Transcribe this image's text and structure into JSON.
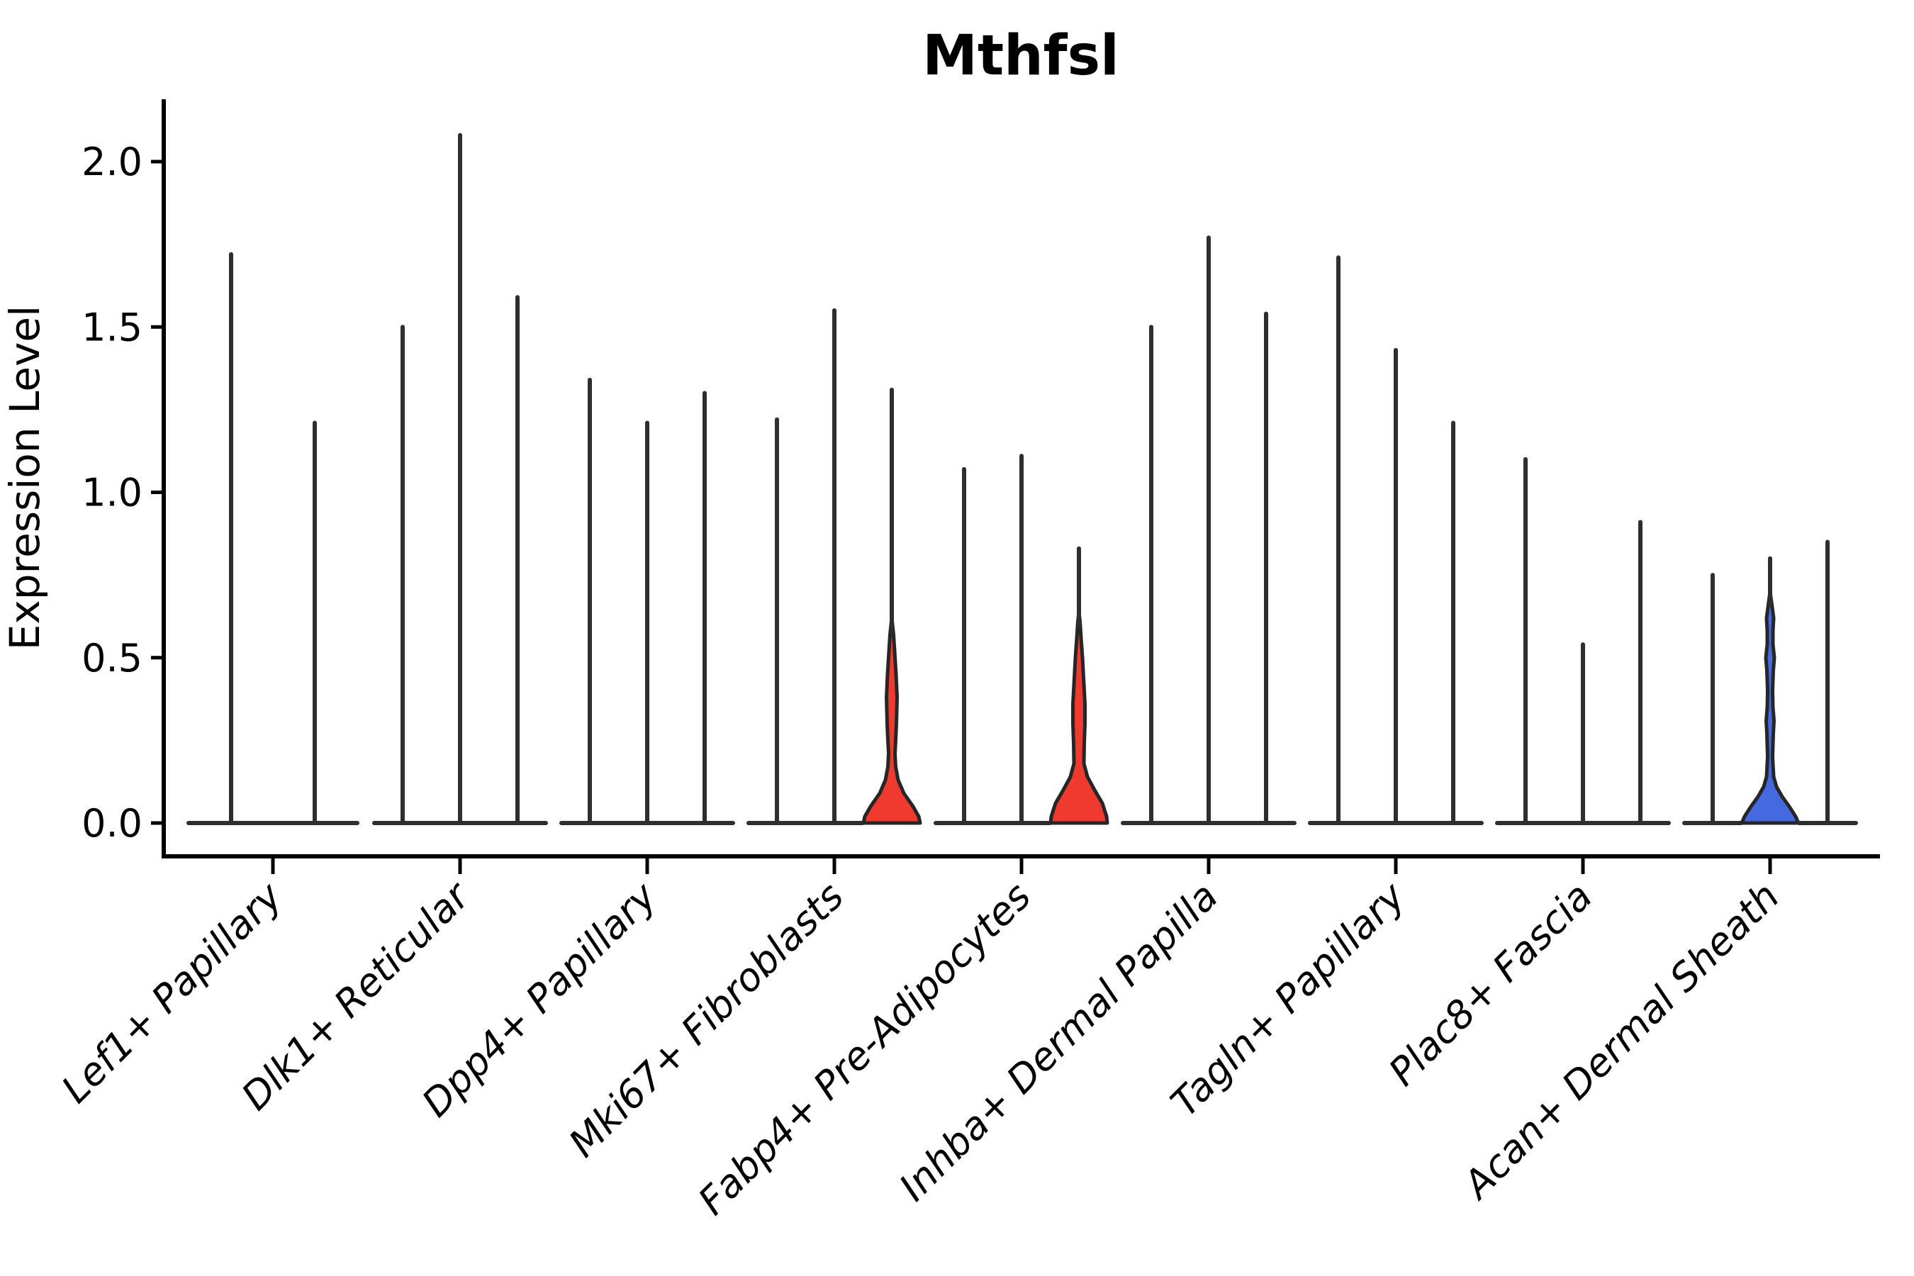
{
  "title": "Mthfsl",
  "ylabel": "Expression Level",
  "chart_data": {
    "type": "violin",
    "title": "Mthfsl",
    "xlabel": "",
    "ylabel": "Expression Level",
    "ylim": [
      -0.11,
      2.19
    ],
    "yticks": [
      0.0,
      0.5,
      1.0,
      1.5,
      2.0
    ],
    "ytick_labels": [
      "0.0",
      "0.5",
      "1.0",
      "1.5",
      "2.0"
    ],
    "grid": false,
    "legend": "none",
    "categories": [
      "Lef1+ Papillary",
      "Dlk1+ Reticular",
      "Dpp4+ Papillary",
      "Mki67+ Fibroblasts",
      "Fabp4+ Pre-Adipocytes",
      "Inhba+ Dermal Papilla",
      "Tagln+ Papillary",
      "Plac8+ Fascia",
      "Acan+ Dermal Sheath"
    ],
    "note": "Each category holds 2-3 thin violins; most collapse to a spike at 0 with a flat base. Filled violins mark non-zero expression density.",
    "groups": [
      {
        "label": "Lef1+ Papillary",
        "violins": [
          {
            "max": 1.72,
            "fill": "none"
          },
          {
            "max": 1.21,
            "fill": "none"
          }
        ]
      },
      {
        "label": "Dlk1+ Reticular",
        "violins": [
          {
            "max": 1.5,
            "fill": "none"
          },
          {
            "max": 2.08,
            "fill": "none"
          },
          {
            "max": 1.59,
            "fill": "none"
          }
        ]
      },
      {
        "label": "Dpp4+ Papillary",
        "violins": [
          {
            "max": 1.34,
            "fill": "none"
          },
          {
            "max": 1.21,
            "fill": "none"
          },
          {
            "max": 1.3,
            "fill": "none"
          }
        ]
      },
      {
        "label": "Mki67+ Fibroblasts",
        "violins": [
          {
            "max": 1.22,
            "fill": "none"
          },
          {
            "max": 1.55,
            "fill": "none"
          },
          {
            "max": 1.31,
            "fill": "#f13a2f",
            "profile": [
              [
                0,
                40
              ],
              [
                0.02,
                38
              ],
              [
                0.05,
                30
              ],
              [
                0.09,
                17
              ],
              [
                0.13,
                9
              ],
              [
                0.17,
                5.5
              ],
              [
                0.21,
                4.5
              ],
              [
                0.25,
                5.5
              ],
              [
                0.3,
                6.5
              ],
              [
                0.38,
                7.5
              ],
              [
                0.45,
                6
              ],
              [
                0.52,
                4
              ],
              [
                0.57,
                2.5
              ],
              [
                0.62,
                0
              ]
            ]
          }
        ]
      },
      {
        "label": "Fabp4+ Pre-Adipocytes",
        "violins": [
          {
            "max": 1.07,
            "fill": "none"
          },
          {
            "max": 1.11,
            "fill": "none"
          },
          {
            "max": 0.83,
            "fill": "#f13a2f",
            "profile": [
              [
                0,
                40
              ],
              [
                0.02,
                39
              ],
              [
                0.06,
                33
              ],
              [
                0.1,
                22
              ],
              [
                0.14,
                12
              ],
              [
                0.18,
                7
              ],
              [
                0.24,
                7.5
              ],
              [
                0.3,
                8.5
              ],
              [
                0.36,
                8.5
              ],
              [
                0.42,
                7
              ],
              [
                0.5,
                5
              ],
              [
                0.56,
                3
              ],
              [
                0.61,
                1.5
              ],
              [
                0.64,
                0
              ]
            ]
          }
        ]
      },
      {
        "label": "Inhba+ Dermal Papilla",
        "violins": [
          {
            "max": 1.5,
            "fill": "none"
          },
          {
            "max": 1.77,
            "fill": "none"
          },
          {
            "max": 1.54,
            "fill": "none"
          }
        ]
      },
      {
        "label": "Tagln+ Papillary",
        "violins": [
          {
            "max": 1.71,
            "fill": "none"
          },
          {
            "max": 1.43,
            "fill": "none"
          },
          {
            "max": 1.21,
            "fill": "none"
          }
        ]
      },
      {
        "label": "Plac8+ Fascia",
        "violins": [
          {
            "max": 1.1,
            "fill": "none"
          },
          {
            "max": 0.54,
            "fill": "none"
          },
          {
            "max": 0.91,
            "fill": "none"
          }
        ]
      },
      {
        "label": "Acan+ Dermal Sheath",
        "violins": [
          {
            "max": 0.75,
            "fill": "none"
          },
          {
            "max": 0.8,
            "fill": "#4569df",
            "profile": [
              [
                0,
                40
              ],
              [
                0.02,
                36
              ],
              [
                0.05,
                27
              ],
              [
                0.08,
                17
              ],
              [
                0.11,
                9
              ],
              [
                0.14,
                5
              ],
              [
                0.2,
                3.5
              ],
              [
                0.27,
                4.5
              ],
              [
                0.31,
                5.5
              ],
              [
                0.35,
                4
              ],
              [
                0.4,
                3.5
              ],
              [
                0.46,
                4.5
              ],
              [
                0.5,
                6
              ],
              [
                0.54,
                4
              ],
              [
                0.58,
                4
              ],
              [
                0.62,
                5
              ],
              [
                0.66,
                2.5
              ],
              [
                0.7,
                0
              ]
            ]
          },
          {
            "max": 0.85,
            "fill": "none"
          }
        ]
      }
    ],
    "colors": {
      "red_fill": "#f13a2f",
      "blue_fill": "#4569df",
      "stem": "#2e2e2e",
      "violin_outline": "#262626",
      "spine": "#000000",
      "background": "#ffffff"
    }
  }
}
